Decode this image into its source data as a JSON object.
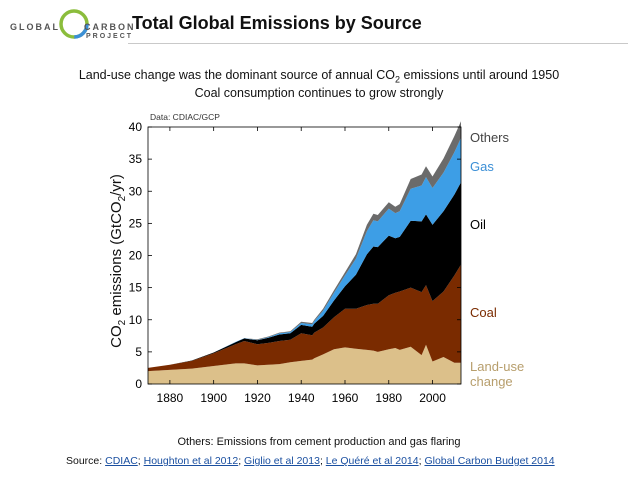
{
  "logo": {
    "text_left": "GLOBAL",
    "text_right": "CARBON",
    "text_bottom": "PROJECT"
  },
  "title": "Total Global Emissions by Source",
  "subtitle_line1_prefix": "Land-use change was the dominant source of annual CO",
  "subtitle_line1_sub": "2",
  "subtitle_line1_suffix": " emissions until around 1950",
  "subtitle_line2": "Coal consumption continues to grow strongly",
  "note": "Others: Emissions from cement production and gas flaring",
  "source": {
    "label": "Source:",
    "links": [
      "CDIAC",
      "Houghton et al 2012",
      "Giglio et al 2013",
      "Le Quéré et al 2014",
      "Global Carbon Budget 2014"
    ],
    "separators": [
      ";",
      ";",
      ";",
      ";"
    ]
  },
  "colors": {
    "land_use": "#dcc08a",
    "coal": "#7a2b00",
    "oil": "#000000",
    "gas": "#3d9ee6",
    "others": "#6b6b6b",
    "gas_label": "#3b8fd6",
    "land_use_label": "#b79e6c",
    "logo_ring": "#8bbd3c"
  },
  "chart_data": {
    "type": "area",
    "stacked": true,
    "data_source_label": "Data: CDIAC/GCP",
    "ylabel_prefix": "CO",
    "ylabel_sub": "2",
    "ylabel_mid": " emissions (GtCO",
    "ylabel_sub2": "2",
    "ylabel_suffix": "/yr)",
    "xlim": [
      1870,
      2013
    ],
    "ylim": [
      0,
      40
    ],
    "yticks": [
      0,
      5,
      10,
      15,
      20,
      25,
      30,
      35,
      40
    ],
    "xticks": [
      1880,
      1900,
      1920,
      1940,
      1960,
      1980,
      2000
    ],
    "x": [
      1870,
      1880,
      1890,
      1900,
      1910,
      1914,
      1920,
      1925,
      1930,
      1935,
      1940,
      1945,
      1946,
      1950,
      1955,
      1960,
      1965,
      1970,
      1973,
      1975,
      1980,
      1983,
      1985,
      1990,
      1995,
      1997,
      2000,
      2005,
      2010,
      2013
    ],
    "series": [
      {
        "name": "Land-use change",
        "values": [
          2.0,
          2.2,
          2.4,
          2.8,
          3.2,
          3.2,
          2.9,
          3.0,
          3.1,
          3.4,
          3.6,
          3.8,
          4.0,
          4.6,
          5.4,
          5.7,
          5.5,
          5.3,
          5.2,
          5.0,
          5.4,
          5.6,
          5.3,
          5.8,
          4.5,
          6.1,
          3.5,
          4.2,
          3.3,
          3.3
        ]
      },
      {
        "name": "Coal",
        "values": [
          0.5,
          0.8,
          1.2,
          2.0,
          3.0,
          3.5,
          3.3,
          3.4,
          3.6,
          3.5,
          4.3,
          3.8,
          4.0,
          4.2,
          5.0,
          6.0,
          6.2,
          7.0,
          7.3,
          7.5,
          8.4,
          8.6,
          9.1,
          9.2,
          9.8,
          9.3,
          9.4,
          10.2,
          13.6,
          15.3
        ]
      },
      {
        "name": "Oil",
        "values": [
          0.0,
          0.0,
          0.05,
          0.1,
          0.3,
          0.4,
          0.6,
          0.8,
          1.0,
          1.0,
          1.3,
          1.3,
          1.4,
          1.8,
          2.6,
          3.5,
          5.3,
          7.9,
          8.9,
          8.8,
          9.3,
          8.5,
          8.5,
          10.4,
          11.0,
          11.0,
          11.9,
          12.5,
          12.6,
          12.8
        ]
      },
      {
        "name": "Gas",
        "values": [
          0.0,
          0.0,
          0.0,
          0.0,
          0.05,
          0.05,
          0.05,
          0.1,
          0.2,
          0.2,
          0.3,
          0.4,
          0.4,
          0.8,
          1.2,
          1.7,
          2.5,
          3.6,
          4.1,
          4.0,
          4.2,
          3.9,
          4.0,
          5.0,
          5.6,
          5.8,
          5.7,
          6.0,
          6.6,
          6.9
        ]
      },
      {
        "name": "Others",
        "values": [
          0.0,
          0.0,
          0.0,
          0.0,
          0.0,
          0.0,
          0.1,
          0.1,
          0.1,
          0.1,
          0.2,
          0.2,
          0.2,
          0.3,
          0.4,
          0.5,
          0.7,
          1.0,
          1.0,
          1.0,
          1.0,
          1.0,
          1.1,
          1.5,
          1.7,
          1.7,
          1.8,
          2.2,
          2.5,
          2.6
        ]
      }
    ],
    "legend": [
      {
        "label": "Others"
      },
      {
        "label": "Gas"
      },
      {
        "label": "Oil"
      },
      {
        "label": "Coal"
      },
      {
        "label": "Land-use",
        "label2": "change"
      }
    ],
    "grid": false
  }
}
